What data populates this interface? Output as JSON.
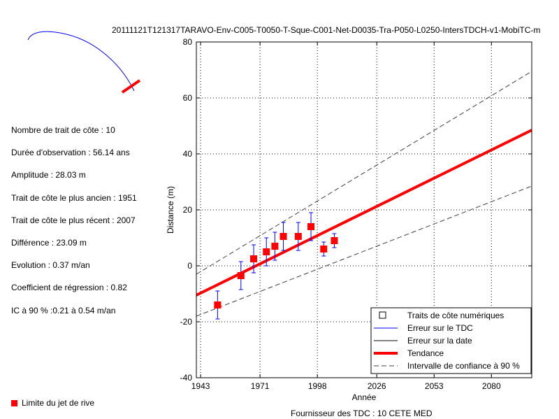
{
  "title": "20111121T121317TARAVO-Env-C005-T0050-T-Sque-C001-Net-D0035-Tra-P050-L0250-IntersTDCH-v1-MobiTC-m",
  "stats": [
    "Nombre de trait de côte : 10",
    "Durée d'observation : 56.14 ans",
    "Amplitude : 28.03 m",
    "Trait de côte le plus ancien : 1951",
    "Trait de côte le plus récent : 2007",
    "Différence : 23.09 m",
    "Evolution : 0.37 m/an",
    "Coefficient de régression : 0.82",
    "IC à 90 % :0.21 à 0.54 m/an"
  ],
  "limit_legend": "Limite du jet de rive",
  "provider": "Fournisseur des TDC : 10 CETE MED",
  "colors": {
    "points": "#ff0000",
    "error_bars": "#0000ff",
    "trend": "#ff0000",
    "confidence": "#404040",
    "map_line": "#0000ff"
  },
  "chart_data": {
    "type": "scatter",
    "xlabel": "Année",
    "ylabel": "Distance (m)",
    "xlim": [
      1941,
      2099
    ],
    "ylim": [
      -40,
      80
    ],
    "xticks": [
      1943,
      1971,
      1998,
      2026,
      2053,
      2080
    ],
    "yticks": [
      -40,
      -20,
      0,
      20,
      40,
      60,
      80
    ],
    "grid": true,
    "legend_position": "bottom-right",
    "legend": [
      "Traits de côte numériques",
      "Erreur sur le TDC",
      "Erreur sur la date",
      "Tendance",
      "Intervalle de confiance à 90 %"
    ],
    "points": [
      {
        "x": 1951,
        "y": -14,
        "err": 5
      },
      {
        "x": 1962,
        "y": -3.5,
        "err": 5
      },
      {
        "x": 1968,
        "y": 2.5,
        "err": 5
      },
      {
        "x": 1974,
        "y": 5,
        "err": 5
      },
      {
        "x": 1978,
        "y": 7,
        "err": 5
      },
      {
        "x": 1982,
        "y": 10.5,
        "err": 5
      },
      {
        "x": 1989,
        "y": 10.5,
        "err": 5
      },
      {
        "x": 1995,
        "y": 14,
        "err": 5
      },
      {
        "x": 2001,
        "y": 6,
        "err": 2.5
      },
      {
        "x": 2006,
        "y": 9,
        "err": 2.5
      }
    ],
    "trend": {
      "x": [
        1941,
        2099
      ],
      "y": [
        -10.5,
        48.5
      ]
    },
    "ci_upper": {
      "x": [
        1941,
        2099
      ],
      "y": [
        -3,
        69.5
      ]
    },
    "ci_lower": {
      "x": [
        1941,
        2099
      ],
      "y": [
        -18,
        28.5
      ]
    }
  }
}
